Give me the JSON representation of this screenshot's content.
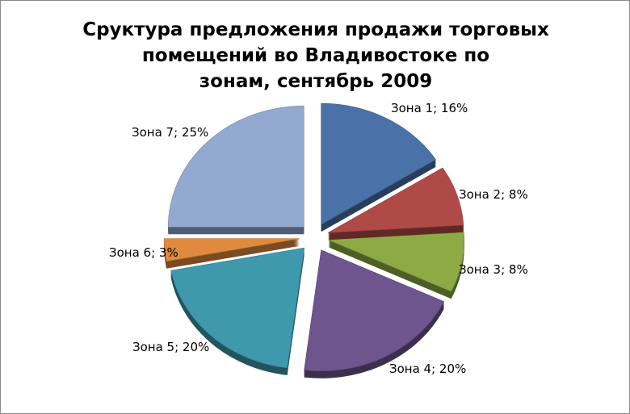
{
  "chart_data": {
    "type": "pie",
    "title_lines": [
      "Сруктура предложения продажи торговых",
      "помещений во Владивостоке по",
      "зонам, сентябрь 2009"
    ],
    "slices": [
      {
        "name": "Зона 1",
        "value": 16,
        "label": "Зона 1; 16%",
        "color": "#4a71a8"
      },
      {
        "name": "Зона 2",
        "value": 8,
        "label": "Зона 2; 8%",
        "color": "#b04a47"
      },
      {
        "name": "Зона 3",
        "value": 8,
        "label": "Зона 3; 8%",
        "color": "#8eaa45"
      },
      {
        "name": "Зона 4",
        "value": 20,
        "label": "Зона 4; 20%",
        "color": "#6f558e"
      },
      {
        "name": "Зона 5",
        "value": 20,
        "label": "Зона 5; 20%",
        "color": "#3f99ad"
      },
      {
        "name": "Зона 6",
        "value": 3,
        "label": "Зона 6; 3%",
        "color": "#e08a3e"
      },
      {
        "name": "Зона 7",
        "value": 25,
        "label": "Зона 7; 25%",
        "color": "#93a9cf"
      }
    ],
    "exploded": true,
    "legend": "none"
  }
}
